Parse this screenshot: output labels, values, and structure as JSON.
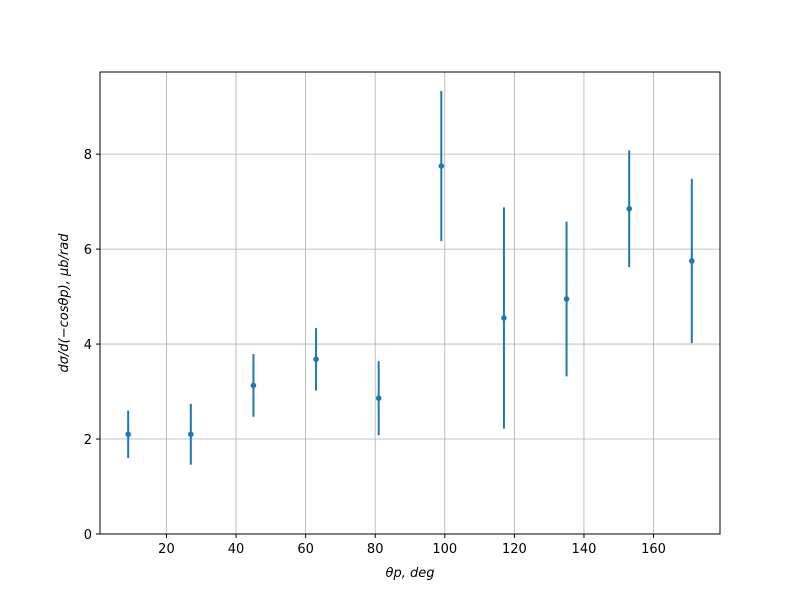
{
  "chart_data": {
    "type": "errorbar",
    "xlabel": "θp, deg",
    "ylabel": "dσ/d(−cosθp), μb/rad",
    "x": [
      9,
      27,
      45,
      63,
      81,
      99,
      117,
      135,
      153,
      171
    ],
    "series": [
      {
        "color": "#1f77b4",
        "values": [
          2.1,
          2.1,
          3.13,
          3.68,
          2.86,
          7.75,
          4.55,
          4.95,
          6.85,
          5.75
        ],
        "errors": [
          0.5,
          0.64,
          0.66,
          0.66,
          0.78,
          1.58,
          2.33,
          1.63,
          1.23,
          1.73
        ]
      }
    ],
    "xlim": [
      0.9,
      179.1
    ],
    "ylim": [
      0,
      9.73
    ],
    "xticks": [
      20,
      40,
      60,
      80,
      100,
      120,
      140,
      160
    ],
    "yticks": [
      0,
      2,
      4,
      6,
      8
    ],
    "grid": true
  }
}
